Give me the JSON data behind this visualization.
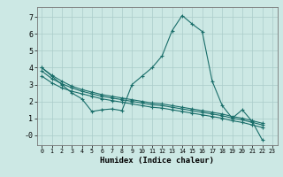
{
  "title": "",
  "xlabel": "Humidex (Indice chaleur)",
  "ylabel": "",
  "background_color": "#cce8e4",
  "grid_color": "#aaccca",
  "line_color": "#1a6e6a",
  "xlim": [
    -0.5,
    23.5
  ],
  "ylim": [
    -0.6,
    7.6
  ],
  "xticks": [
    0,
    1,
    2,
    3,
    4,
    5,
    6,
    7,
    8,
    9,
    10,
    11,
    12,
    13,
    14,
    15,
    16,
    17,
    18,
    19,
    20,
    21,
    22,
    23
  ],
  "yticks": [
    0,
    1,
    2,
    3,
    4,
    5,
    6,
    7
  ],
  "ytick_labels": [
    "-0",
    "1",
    "2",
    "3",
    "4",
    "5",
    "6",
    "7"
  ],
  "series": [
    [
      4.0,
      3.5,
      3.0,
      2.5,
      2.15,
      1.4,
      1.5,
      1.55,
      1.45,
      3.0,
      3.5,
      4.0,
      4.7,
      6.2,
      7.1,
      6.6,
      6.15,
      3.2,
      1.75,
      1.0,
      1.5,
      0.8,
      -0.3
    ],
    [
      4.0,
      3.55,
      3.2,
      2.9,
      2.7,
      2.55,
      2.4,
      2.3,
      2.2,
      2.1,
      2.0,
      1.9,
      1.85,
      1.75,
      1.65,
      1.55,
      1.45,
      1.35,
      1.25,
      1.1,
      1.0,
      0.85,
      0.7
    ],
    [
      3.8,
      3.35,
      3.05,
      2.8,
      2.6,
      2.45,
      2.3,
      2.2,
      2.1,
      2.0,
      1.9,
      1.8,
      1.75,
      1.65,
      1.55,
      1.45,
      1.35,
      1.25,
      1.15,
      1.0,
      0.9,
      0.75,
      0.6
    ],
    [
      3.5,
      3.1,
      2.8,
      2.6,
      2.45,
      2.3,
      2.15,
      2.05,
      1.95,
      1.85,
      1.75,
      1.65,
      1.6,
      1.5,
      1.4,
      1.3,
      1.2,
      1.1,
      1.0,
      0.85,
      0.75,
      0.6,
      0.45
    ]
  ],
  "x_values": [
    0,
    1,
    2,
    3,
    4,
    5,
    6,
    7,
    8,
    9,
    10,
    11,
    12,
    13,
    14,
    15,
    16,
    17,
    18,
    19,
    20,
    21,
    22
  ]
}
